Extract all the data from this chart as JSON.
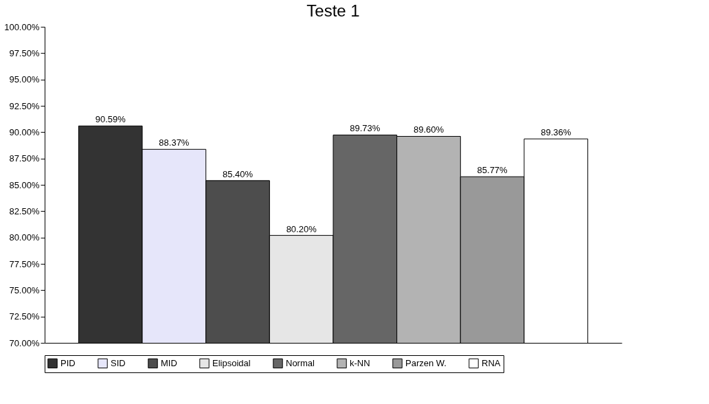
{
  "chart_data": {
    "type": "bar",
    "title": "Teste 1",
    "categories": [
      null
    ],
    "series": [
      {
        "name": "PID",
        "color": "#333333",
        "values": [
          90.59
        ],
        "value_labels": [
          "90.59%"
        ]
      },
      {
        "name": "SID",
        "color": "#e6e6fa",
        "values": [
          88.37
        ],
        "value_labels": [
          "88.37%"
        ]
      },
      {
        "name": "MID",
        "color": "#4d4d4d",
        "values": [
          85.4
        ],
        "value_labels": [
          "85.40%"
        ]
      },
      {
        "name": "Elipsoidal",
        "color": "#e6e6e6",
        "values": [
          80.2
        ],
        "value_labels": [
          "80.20%"
        ]
      },
      {
        "name": "Normal",
        "color": "#666666",
        "values": [
          89.73
        ],
        "value_labels": [
          "89.73%"
        ]
      },
      {
        "name": "k-NN",
        "color": "#b3b3b3",
        "values": [
          89.6
        ],
        "value_labels": [
          "89.60%"
        ]
      },
      {
        "name": "Parzen W.",
        "color": "#999999",
        "values": [
          85.77
        ],
        "value_labels": [
          "85.77%"
        ]
      },
      {
        "name": "RNA",
        "color": "#ffffff",
        "values": [
          89.36
        ],
        "value_labels": [
          "89.36%"
        ]
      }
    ],
    "ylim": [
      70,
      100
    ],
    "yticks": [
      {
        "value": 70,
        "label": "70.00%"
      },
      {
        "value": 72.5,
        "label": "72.50%"
      },
      {
        "value": 75,
        "label": "75.00%"
      },
      {
        "value": 77.5,
        "label": "77.50%"
      },
      {
        "value": 80,
        "label": "80.00%"
      },
      {
        "value": 82.5,
        "label": "82.50%"
      },
      {
        "value": 85,
        "label": "85.00%"
      },
      {
        "value": 87.5,
        "label": "87.50%"
      },
      {
        "value": 90,
        "label": "90.00%"
      },
      {
        "value": 92.5,
        "label": "92.50%"
      },
      {
        "value": 95,
        "label": "95.00%"
      },
      {
        "value": 97.5,
        "label": "97.50%"
      },
      {
        "value": 100,
        "label": "100.00%"
      }
    ],
    "legend": "bottom",
    "tick_labels": "y",
    "grid": false
  }
}
